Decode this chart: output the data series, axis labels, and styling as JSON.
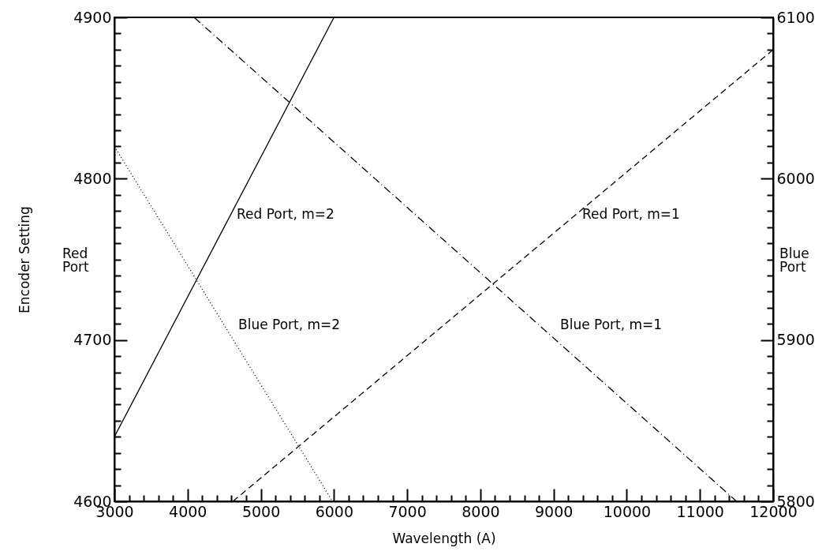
{
  "chart_data": {
    "type": "line",
    "xlabel": "Wavelength (A)",
    "ylabel": "Encoder Setting",
    "xlim": [
      3000,
      12000
    ],
    "ylim": [
      4600,
      4900
    ],
    "y2lim": [
      5800,
      6100
    ],
    "xticks": [
      3000,
      {
        "value": 3200,
        "label": null
      },
      {
        "value": 3400,
        "label": null
      },
      {
        "value": 3600,
        "label": null
      },
      {
        "value": 3800,
        "label": null
      },
      4000,
      {
        "value": 4200,
        "label": null
      },
      {
        "value": 4400,
        "label": null
      },
      {
        "value": 4600,
        "label": null
      },
      {
        "value": 4800,
        "label": null
      },
      5000,
      {
        "value": 5200,
        "label": null
      },
      {
        "value": 5400,
        "label": null
      },
      {
        "value": 5600,
        "label": null
      },
      {
        "value": 5800,
        "label": null
      },
      6000,
      {
        "value": 6200,
        "label": null
      },
      {
        "value": 6400,
        "label": null
      },
      {
        "value": 6600,
        "label": null
      },
      {
        "value": 6800,
        "label": null
      },
      7000,
      {
        "value": 7200,
        "label": null
      },
      {
        "value": 7400,
        "label": null
      },
      {
        "value": 7600,
        "label": null
      },
      {
        "value": 7800,
        "label": null
      },
      8000,
      {
        "value": 8200,
        "label": null
      },
      {
        "value": 8400,
        "label": null
      },
      {
        "value": 8600,
        "label": null
      },
      {
        "value": 8800,
        "label": null
      },
      9000,
      {
        "value": 9200,
        "label": null
      },
      {
        "value": 9400,
        "label": null
      },
      {
        "value": 9600,
        "label": null
      },
      {
        "value": 9800,
        "label": null
      },
      10000,
      {
        "value": 10200,
        "label": null
      },
      {
        "value": 10400,
        "label": null
      },
      {
        "value": 10600,
        "label": null
      },
      {
        "value": 10800,
        "label": null
      },
      11000,
      {
        "value": 11200,
        "label": null
      },
      {
        "value": 11400,
        "label": null
      },
      {
        "value": 11600,
        "label": null
      },
      {
        "value": 11800,
        "label": null
      },
      12000
    ],
    "yticks": [
      4600,
      {
        "value": 4610,
        "label": null
      },
      {
        "value": 4620,
        "label": null
      },
      {
        "value": 4630,
        "label": null
      },
      {
        "value": 4640,
        "label": null
      },
      {
        "value": 4650,
        "label": null
      },
      {
        "value": 4660,
        "label": null
      },
      {
        "value": 4670,
        "label": null
      },
      {
        "value": 4680,
        "label": null
      },
      {
        "value": 4690,
        "label": null
      },
      4700,
      {
        "value": 4710,
        "label": null
      },
      {
        "value": 4720,
        "label": null
      },
      {
        "value": 4730,
        "label": null
      },
      {
        "value": 4740,
        "label": null
      },
      {
        "value": 4750,
        "label": null
      },
      {
        "value": 4760,
        "label": null
      },
      {
        "value": 4770,
        "label": null
      },
      {
        "value": 4780,
        "label": null
      },
      {
        "value": 4790,
        "label": null
      },
      4800,
      {
        "value": 4810,
        "label": null
      },
      {
        "value": 4820,
        "label": null
      },
      {
        "value": 4830,
        "label": null
      },
      {
        "value": 4840,
        "label": null
      },
      {
        "value": 4850,
        "label": null
      },
      {
        "value": 4860,
        "label": null
      },
      {
        "value": 4870,
        "label": null
      },
      {
        "value": 4880,
        "label": null
      },
      {
        "value": 4890,
        "label": null
      },
      4900
    ],
    "y2ticks": [
      5800,
      {
        "value": 5810,
        "label": null
      },
      {
        "value": 5820,
        "label": null
      },
      {
        "value": 5830,
        "label": null
      },
      {
        "value": 5840,
        "label": null
      },
      {
        "value": 5850,
        "label": null
      },
      {
        "value": 5860,
        "label": null
      },
      {
        "value": 5870,
        "label": null
      },
      {
        "value": 5880,
        "label": null
      },
      {
        "value": 5890,
        "label": null
      },
      5900,
      {
        "value": 5910,
        "label": null
      },
      {
        "value": 5920,
        "label": null
      },
      {
        "value": 5930,
        "label": null
      },
      {
        "value": 5940,
        "label": null
      },
      {
        "value": 5950,
        "label": null
      },
      {
        "value": 5960,
        "label": null
      },
      {
        "value": 5970,
        "label": null
      },
      {
        "value": 5980,
        "label": null
      },
      {
        "value": 5990,
        "label": null
      },
      6000,
      {
        "value": 6010,
        "label": null
      },
      {
        "value": 6020,
        "label": null
      },
      {
        "value": 6030,
        "label": null
      },
      {
        "value": 6040,
        "label": null
      },
      {
        "value": 6050,
        "label": null
      },
      {
        "value": 6060,
        "label": null
      },
      {
        "value": 6070,
        "label": null
      },
      {
        "value": 6080,
        "label": null
      },
      {
        "value": 6090,
        "label": null
      },
      6100
    ],
    "series": [
      {
        "color": "#000000",
        "line_style": "solid",
        "x": [
          3000,
          4500,
          6000
        ],
        "values": [
          4640,
          4770,
          4900
        ]
      },
      {
        "color": "#000000",
        "line_style": "dotted",
        "axis": "y2",
        "x": [
          3000,
          5980
        ],
        "values": [
          6020,
          5800
        ]
      },
      {
        "color": "#000000",
        "line_style": "dashed",
        "x": [
          4620,
          12000
        ],
        "values": [
          4600,
          4880
        ]
      },
      {
        "color": "#000000",
        "line_style": "dashdot",
        "axis": "y2",
        "x": [
          4090,
          11500
        ],
        "values": [
          6100,
          5800
        ]
      }
    ],
    "annotations": [
      "Red Port, m=2",
      "Blue Port, m=2",
      "Red Port, m=1",
      "Blue Port, m=1",
      "Red Port",
      "Blue Port"
    ],
    "grid": false
  }
}
